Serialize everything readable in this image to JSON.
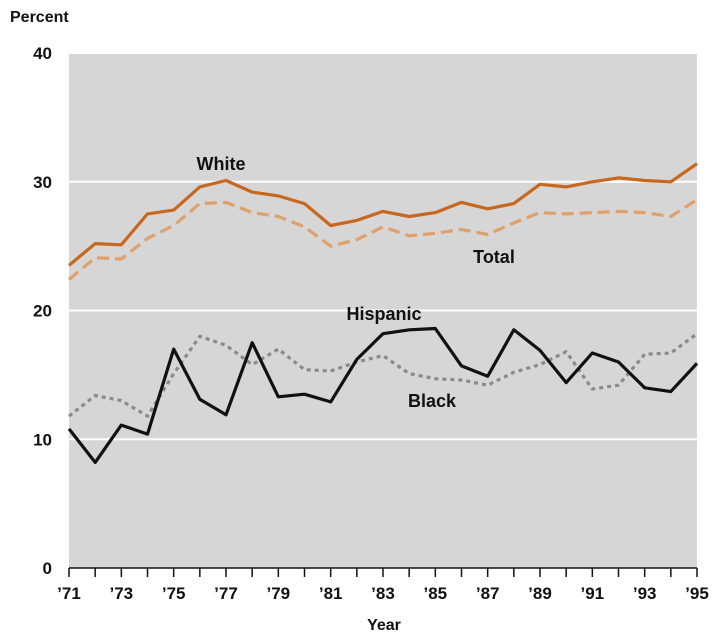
{
  "chart_data": {
    "type": "line",
    "title": "",
    "ylabel": "Percent",
    "xlabel": "Year",
    "ylim": [
      0,
      40
    ],
    "yticks": [
      0,
      10,
      20,
      30,
      40
    ],
    "xlim": [
      1971,
      1995
    ],
    "x": [
      1971,
      1972,
      1973,
      1974,
      1975,
      1976,
      1977,
      1978,
      1979,
      1980,
      1981,
      1982,
      1983,
      1984,
      1985,
      1986,
      1987,
      1988,
      1989,
      1990,
      1991,
      1992,
      1993,
      1994,
      1995
    ],
    "xtick_labels": [
      "’71",
      "’73",
      "’75",
      "’77",
      "’79",
      "’81",
      "’83",
      "’85",
      "’87",
      "’89",
      "’91",
      "’93",
      "’95"
    ],
    "grid": "horizontal",
    "background": "#d6d6d6",
    "series": [
      {
        "name": "White",
        "color": "#c8671e",
        "style": "solid",
        "values": [
          23.5,
          25.2,
          25.1,
          27.5,
          27.8,
          29.6,
          30.1,
          29.2,
          28.9,
          28.3,
          26.6,
          27.0,
          27.7,
          27.3,
          27.6,
          28.4,
          27.9,
          28.3,
          29.8,
          29.6,
          30.0,
          30.3,
          30.1,
          30.0,
          31.4
        ]
      },
      {
        "name": "Total",
        "color": "#e0a06a",
        "style": "dashed",
        "values": [
          22.4,
          24.1,
          24.0,
          25.6,
          26.6,
          28.3,
          28.4,
          27.6,
          27.3,
          26.5,
          25.0,
          25.5,
          26.5,
          25.8,
          26.0,
          26.3,
          25.9,
          26.8,
          27.6,
          27.5,
          27.6,
          27.7,
          27.6,
          27.3,
          28.6
        ]
      },
      {
        "name": "Hispanic",
        "color": "#111111",
        "style": "solid",
        "values": [
          10.8,
          8.2,
          11.1,
          10.4,
          17.0,
          13.1,
          11.9,
          17.5,
          13.3,
          13.5,
          12.9,
          16.2,
          18.2,
          18.5,
          18.6,
          15.7,
          14.9,
          18.5,
          16.9,
          14.4,
          16.7,
          16.0,
          14.0,
          13.7,
          15.9
        ]
      },
      {
        "name": "Black",
        "color": "#8a8a8a",
        "style": "dotted",
        "values": [
          11.8,
          13.4,
          13.0,
          11.8,
          15.1,
          18.0,
          17.3,
          15.8,
          17.0,
          15.4,
          15.3,
          16.0,
          16.5,
          15.1,
          14.7,
          14.6,
          14.2,
          15.2,
          15.8,
          16.8,
          13.9,
          14.2,
          16.6,
          16.7,
          18.2
        ]
      }
    ]
  }
}
